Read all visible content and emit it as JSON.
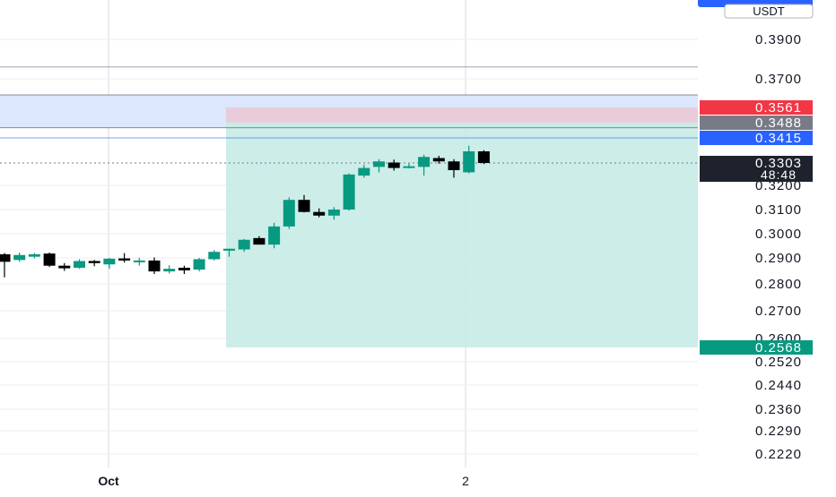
{
  "header": {
    "symbol_badge_text": "",
    "currency_label": "USDT"
  },
  "colors": {
    "up": "#089981",
    "down": "#000000",
    "grid": "#d9d9dc",
    "axis_text": "#131722",
    "blue_line": "#2962ff",
    "red_badge": "#f23645",
    "gray_badge": "#787b86",
    "dark_badge": "#1e222d",
    "profit_zone": "#c7ebe6",
    "loss_zone": "#e9cad8",
    "blue_zone": "#dce6fd"
  },
  "chart_data": {
    "type": "candlestick",
    "price_axis": {
      "tick_labels": [
        "0.3900",
        "0.3700",
        "0.3200",
        "0.3100",
        "0.3000",
        "0.2900",
        "0.2800",
        "0.2700",
        "0.2600",
        "0.2520",
        "0.2440",
        "0.2360",
        "0.2290",
        "0.2220"
      ],
      "ylim": [
        0.222,
        0.398
      ]
    },
    "time_axis": {
      "tick_labels": [
        "Oct",
        "2"
      ]
    },
    "candles": [
      {
        "o": 0.2915,
        "h": 0.292,
        "l": 0.2825,
        "c": 0.2885
      },
      {
        "o": 0.2892,
        "h": 0.2922,
        "l": 0.2885,
        "c": 0.2912
      },
      {
        "o": 0.2905,
        "h": 0.292,
        "l": 0.2898,
        "c": 0.2915
      },
      {
        "o": 0.2918,
        "h": 0.2922,
        "l": 0.2865,
        "c": 0.287
      },
      {
        "o": 0.287,
        "h": 0.288,
        "l": 0.285,
        "c": 0.286
      },
      {
        "o": 0.2862,
        "h": 0.2895,
        "l": 0.2858,
        "c": 0.2888
      },
      {
        "o": 0.2888,
        "h": 0.2892,
        "l": 0.2868,
        "c": 0.288
      },
      {
        "o": 0.2875,
        "h": 0.29,
        "l": 0.2858,
        "c": 0.2897
      },
      {
        "o": 0.2898,
        "h": 0.292,
        "l": 0.2882,
        "c": 0.289
      },
      {
        "o": 0.289,
        "h": 0.29,
        "l": 0.287,
        "c": 0.289
      },
      {
        "o": 0.289,
        "h": 0.2902,
        "l": 0.2838,
        "c": 0.2848
      },
      {
        "o": 0.2848,
        "h": 0.2872,
        "l": 0.284,
        "c": 0.2858
      },
      {
        "o": 0.2862,
        "h": 0.287,
        "l": 0.2838,
        "c": 0.2852
      },
      {
        "o": 0.2855,
        "h": 0.29,
        "l": 0.2848,
        "c": 0.2895
      },
      {
        "o": 0.2895,
        "h": 0.2932,
        "l": 0.289,
        "c": 0.2925
      },
      {
        "o": 0.293,
        "h": 0.2938,
        "l": 0.2905,
        "c": 0.2938
      },
      {
        "o": 0.2935,
        "h": 0.2978,
        "l": 0.2925,
        "c": 0.2975
      },
      {
        "o": 0.2982,
        "h": 0.299,
        "l": 0.2955,
        "c": 0.2955
      },
      {
        "o": 0.2955,
        "h": 0.3045,
        "l": 0.294,
        "c": 0.303
      },
      {
        "o": 0.303,
        "h": 0.315,
        "l": 0.302,
        "c": 0.314
      },
      {
        "o": 0.314,
        "h": 0.316,
        "l": 0.3088,
        "c": 0.309
      },
      {
        "o": 0.309,
        "h": 0.3105,
        "l": 0.3068,
        "c": 0.3075
      },
      {
        "o": 0.3075,
        "h": 0.311,
        "l": 0.3058,
        "c": 0.31
      },
      {
        "o": 0.31,
        "h": 0.3255,
        "l": 0.3095,
        "c": 0.325
      },
      {
        "o": 0.3245,
        "h": 0.3295,
        "l": 0.3235,
        "c": 0.328
      },
      {
        "o": 0.3285,
        "h": 0.332,
        "l": 0.326,
        "c": 0.331
      },
      {
        "o": 0.3305,
        "h": 0.3318,
        "l": 0.3268,
        "c": 0.328
      },
      {
        "o": 0.3288,
        "h": 0.33,
        "l": 0.3278,
        "c": 0.3288
      },
      {
        "o": 0.3285,
        "h": 0.334,
        "l": 0.3245,
        "c": 0.333
      },
      {
        "o": 0.3325,
        "h": 0.3335,
        "l": 0.33,
        "c": 0.331
      },
      {
        "o": 0.331,
        "h": 0.332,
        "l": 0.3235,
        "c": 0.327
      },
      {
        "o": 0.326,
        "h": 0.338,
        "l": 0.3255,
        "c": 0.3355
      },
      {
        "o": 0.3355,
        "h": 0.336,
        "l": 0.3298,
        "c": 0.3303
      }
    ],
    "price_lines": [
      {
        "name": "upper",
        "value": 0.376,
        "label": ""
      },
      {
        "name": "zone-top",
        "value": 0.36,
        "label": ""
      },
      {
        "name": "zone-bottom",
        "value": 0.3455,
        "label": ""
      },
      {
        "name": "blue-line",
        "value": 0.3415,
        "label": "0.3415"
      }
    ],
    "position_tool": {
      "stop_loss": {
        "value": 0.3561,
        "label": "0.3561"
      },
      "entry": {
        "value": 0.3488,
        "label": "0.3488"
      },
      "target": {
        "value": 0.2568,
        "label": "0.2568"
      }
    },
    "current_price": {
      "value": 0.3303,
      "label": "0.3303",
      "countdown": "48:48"
    }
  }
}
